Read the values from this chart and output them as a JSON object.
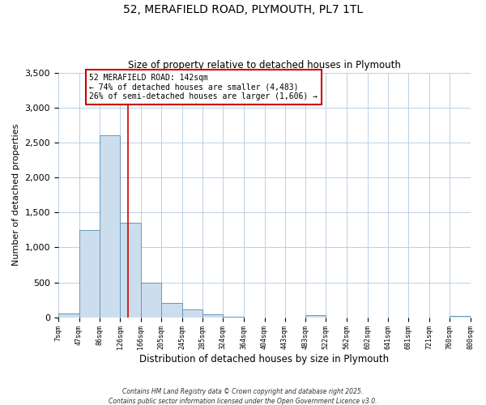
{
  "title": "52, MERAFIELD ROAD, PLYMOUTH, PL7 1TL",
  "subtitle": "Size of property relative to detached houses in Plymouth",
  "xlabel": "Distribution of detached houses by size in Plymouth",
  "ylabel": "Number of detached properties",
  "bar_edges": [
    7,
    47,
    86,
    126,
    166,
    205,
    245,
    285,
    324,
    364,
    404,
    443,
    483,
    522,
    562,
    602,
    641,
    681,
    721,
    760,
    800
  ],
  "bar_heights": [
    50,
    1250,
    2600,
    1350,
    500,
    200,
    110,
    40,
    5,
    0,
    0,
    0,
    30,
    0,
    0,
    0,
    0,
    0,
    0,
    18
  ],
  "bar_color": "#ccdded",
  "bar_edge_color": "#6699bb",
  "property_line_x": 142,
  "property_line_color": "#cc0000",
  "annotation_title": "52 MERAFIELD ROAD: 142sqm",
  "annotation_line1": "← 74% of detached houses are smaller (4,483)",
  "annotation_line2": "26% of semi-detached houses are larger (1,606) →",
  "annotation_box_color": "#cc0000",
  "ylim": [
    0,
    3500
  ],
  "yticks": [
    0,
    500,
    1000,
    1500,
    2000,
    2500,
    3000,
    3500
  ],
  "tick_labels": [
    "7sqm",
    "47sqm",
    "86sqm",
    "126sqm",
    "166sqm",
    "205sqm",
    "245sqm",
    "285sqm",
    "324sqm",
    "364sqm",
    "404sqm",
    "443sqm",
    "483sqm",
    "522sqm",
    "562sqm",
    "602sqm",
    "641sqm",
    "681sqm",
    "721sqm",
    "760sqm",
    "800sqm"
  ],
  "background_color": "#ffffff",
  "grid_color": "#b0c8e0",
  "footnote1": "Contains HM Land Registry data © Crown copyright and database right 2025.",
  "footnote2": "Contains public sector information licensed under the Open Government Licence v3.0."
}
